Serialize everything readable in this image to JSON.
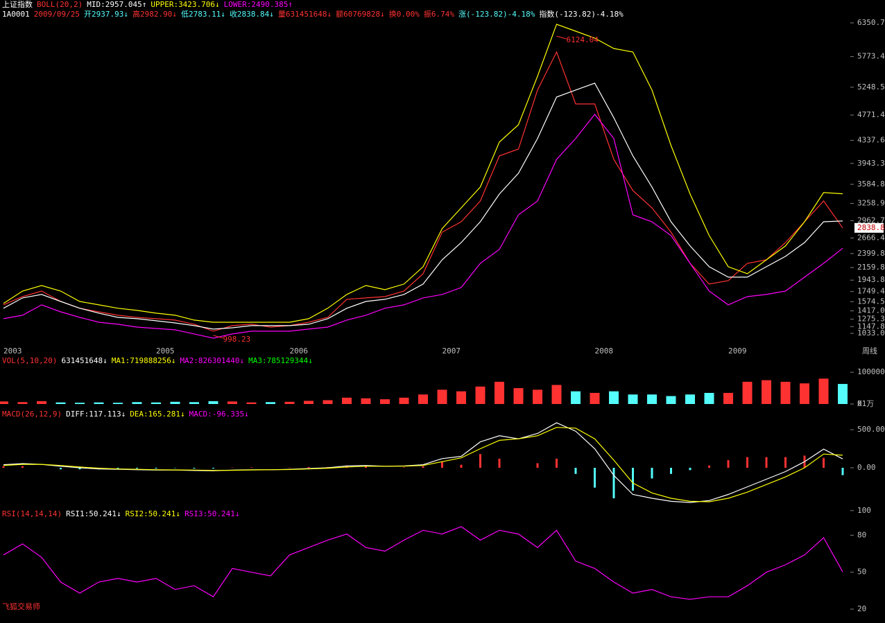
{
  "chart_data": [
    {
      "type": "line",
      "header": [
        [
          {
            "text": "上证指数",
            "color": "#ffffff"
          },
          {
            "text": "BOLL(20,2)",
            "color": "#ff3232"
          },
          {
            "text": "MID:2957.045↑",
            "color": "#ffffff"
          },
          {
            "text": "UPPER:3423.706↓",
            "color": "#ffff00"
          },
          {
            "text": "LOWER:2490.385↑",
            "color": "#ff00ff"
          }
        ],
        [
          {
            "text": "1A0001",
            "color": "#ffffff"
          },
          {
            "text": "2009/09/25",
            "color": "#ff3232"
          },
          {
            "text": "开2937.93↓",
            "color": "#54fcfc"
          },
          {
            "text": "高2982.90↓",
            "color": "#ff3232"
          },
          {
            "text": "低2783.11↓",
            "color": "#54fcfc"
          },
          {
            "text": "收2838.84↓",
            "color": "#54fcfc"
          },
          {
            "text": "量631451648↓",
            "color": "#ff3232"
          },
          {
            "text": "额60769828↓",
            "color": "#ff3232"
          },
          {
            "text": "换0.00%",
            "color": "#ff3232"
          },
          {
            "text": "振6.74%",
            "color": "#ff3232"
          },
          {
            "text": "涨(-123.82)-4.18%",
            "color": "#54fcfc"
          },
          {
            "text": "指数(-123.82)-4.18%",
            "color": "#ffffff"
          }
        ]
      ],
      "categories": [
        "2003",
        null,
        null,
        null,
        null,
        null,
        null,
        null,
        "2005",
        null,
        null,
        null,
        null,
        null,
        null,
        "2006",
        null,
        null,
        null,
        null,
        null,
        null,
        null,
        "2007",
        null,
        null,
        null,
        null,
        null,
        null,
        null,
        "2008",
        null,
        null,
        null,
        null,
        null,
        null,
        "2009",
        null,
        null,
        null,
        null,
        null,
        null
      ],
      "x_label": "周线",
      "last_label": "2838.8",
      "annotations": [
        {
          "text": "6124.04",
          "x": 29,
          "y": 6124.04
        },
        {
          "text": "998.23",
          "x": 11,
          "y": 998.23
        }
      ],
      "ylim": [
        902,
        6410
      ],
      "yticks": [
        6350.7,
        5773.4,
        5248.5,
        4771.4,
        4337.6,
        3943.3,
        3584.8,
        3258.9,
        2962.7,
        2666.4,
        2399.8,
        2159.8,
        1943.8,
        1749.4,
        1574.5,
        {
          "value": 1417,
          "label": "1417.0"
        },
        1275.3,
        1147.8,
        {
          "value": 1033,
          "label": "1033.0"
        }
      ],
      "series": [
        {
          "color": "#ff3232",
          "values": [
            1520,
            1662,
            1757,
            1579,
            1462,
            1401,
            1342,
            1306,
            1283,
            1259,
            1188,
            1069,
            1164,
            1188,
            1140,
            1164,
            1223,
            1306,
            1615,
            1639,
            1662,
            1757,
            2054,
            2766,
            2944,
            3300,
            4072,
            4190,
            5200,
            5852,
            4962,
            4962,
            4012,
            3478,
            3182,
            2766,
            2232,
            1876,
            1935,
            2232,
            2292,
            2588,
            2944,
            3300,
            2838.84
          ]
        },
        {
          "color": "#ffffff",
          "values": [
            1462,
            1639,
            1698,
            1579,
            1462,
            1378,
            1306,
            1283,
            1247,
            1211,
            1164,
            1105,
            1128,
            1164,
            1164,
            1164,
            1188,
            1283,
            1462,
            1579,
            1615,
            1698,
            1876,
            2292,
            2588,
            2944,
            3419,
            3775,
            4369,
            5081,
            5200,
            5318,
            4725,
            4072,
            3538,
            2944,
            2529,
            2173,
            1995,
            1995,
            2173,
            2351,
            2588,
            2944,
            2957.045
          ]
        },
        {
          "color": "#ffff00",
          "values": [
            1544,
            1757,
            1852,
            1757,
            1579,
            1520,
            1462,
            1425,
            1378,
            1342,
            1259,
            1223,
            1223,
            1223,
            1223,
            1223,
            1283,
            1462,
            1698,
            1852,
            1781,
            1876,
            2173,
            2826,
            3182,
            3538,
            4309,
            4606,
            5437,
            6327,
            6208,
            6090,
            5912,
            5852,
            5200,
            4250,
            3419,
            2707,
            2173,
            2054,
            2292,
            2529,
            2944,
            3443,
            3423.706
          ]
        },
        {
          "color": "#ff00ff",
          "values": [
            1283,
            1342,
            1520,
            1401,
            1306,
            1223,
            1188,
            1140,
            1116,
            1093,
            1022,
            950,
            1022,
            1069,
            1069,
            1069,
            1105,
            1140,
            1259,
            1342,
            1462,
            1520,
            1639,
            1698,
            1817,
            2232,
            2470,
            3063,
            3300,
            4012,
            4369,
            4784,
            4369,
            3063,
            2944,
            2707,
            2232,
            1757,
            1520,
            1662,
            1698,
            1757,
            1995,
            2232,
            2490.385
          ]
        }
      ]
    },
    {
      "type": "bar",
      "header": [
        [
          {
            "text": "VOL(5,10,20)",
            "color": "#ff3232"
          },
          {
            "text": "631451648↓",
            "color": "#ffffff"
          },
          {
            "text": "MA1:719888256↓",
            "color": "#ffff00"
          },
          {
            "text": "MA2:826301440↓",
            "color": "#ff00ff"
          },
          {
            "text": "MA3:785129344↓",
            "color": "#00ff00"
          }
        ]
      ],
      "y_unit": "X1万",
      "ylim": [
        0,
        120000
      ],
      "yticks": [
        0,
        100000
      ],
      "up_color": "#ff3232",
      "down_color": "#54fcfc",
      "series": [
        {
          "values": [
            8000,
            6000,
            9000,
            5000,
            4000,
            5000,
            4000,
            6000,
            5000,
            7000,
            6000,
            9000,
            8000,
            5000,
            6000,
            7000,
            10000,
            12000,
            20000,
            18000,
            15000,
            20000,
            30000,
            45000,
            40000,
            55000,
            70000,
            50000,
            45000,
            60000,
            40000,
            35000,
            40000,
            30000,
            30000,
            25000,
            30000,
            35000,
            35000,
            70000,
            75000,
            70000,
            65000,
            80000,
            63145
          ]
        }
      ]
    },
    {
      "type": "macd",
      "header": [
        [
          {
            "text": "MACD(26,12,9)",
            "color": "#ff3232"
          },
          {
            "text": "DIFF:117.113↓",
            "color": "#ffffff"
          },
          {
            "text": "DEA:165.281↓",
            "color": "#ffff00"
          },
          {
            "text": "MACD:-96.335↓",
            "color": "#ff00ff"
          }
        ]
      ],
      "ylim": [
        -545,
        682
      ],
      "yticks": [
        {
          "value": 500,
          "label": "500.00"
        },
        {
          "value": 0,
          "label": "0.00"
        }
      ],
      "series": [
        {
          "type": "bar",
          "color": "#ff3232",
          "negative_color": "#54fcfc",
          "values": [
            20,
            20,
            0,
            -20,
            -20,
            -20,
            -10,
            -10,
            -10,
            -4,
            -10,
            -10,
            4,
            6,
            0,
            4,
            10,
            10,
            30,
            20,
            0,
            6,
            20,
            80,
            40,
            180,
            120,
            0,
            60,
            120,
            -80,
            -260,
            -400,
            -300,
            -140,
            -80,
            -30,
            30,
            100,
            140,
            140,
            140,
            160,
            130,
            -96.335
          ]
        },
        {
          "type": "line",
          "color": "#ffffff",
          "values": [
            40,
            55,
            45,
            20,
            0,
            -15,
            -20,
            -25,
            -30,
            -30,
            -35,
            -40,
            -30,
            -25,
            -25,
            -20,
            -10,
            0,
            25,
            30,
            20,
            25,
            40,
            120,
            150,
            340,
            420,
            380,
            450,
            590,
            480,
            250,
            -100,
            -350,
            -400,
            -440,
            -455,
            -430,
            -350,
            -250,
            -150,
            -50,
            80,
            245,
            117.113
          ]
        },
        {
          "type": "line",
          "color": "#ffff00",
          "values": [
            30,
            45,
            45,
            30,
            10,
            -5,
            -15,
            -20,
            -25,
            -28,
            -30,
            -35,
            -32,
            -28,
            -25,
            -22,
            -15,
            -5,
            10,
            20,
            20,
            22,
            30,
            80,
            130,
            250,
            360,
            380,
            420,
            530,
            520,
            380,
            100,
            -200,
            -330,
            -400,
            -440,
            -445,
            -400,
            -320,
            -220,
            -120,
            0,
            180,
            165.281
          ]
        }
      ]
    },
    {
      "type": "line",
      "header": [
        [
          {
            "text": "RSI(14,14,14)",
            "color": "#ff3232"
          },
          {
            "text": "RSI1:50.241↓",
            "color": "#ffffff"
          },
          {
            "text": "RSI2:50.241↓",
            "color": "#ffff00"
          },
          {
            "text": "RSI3:50.241↓",
            "color": "#ff00ff"
          }
        ]
      ],
      "footer": "飞狐交易师",
      "ylim": [
        11,
        101
      ],
      "yticks": [
        100,
        80,
        50,
        20
      ],
      "series": [
        {
          "color": "#ff00ff",
          "values": [
            64,
            73,
            62,
            42,
            33,
            42,
            45,
            42,
            45,
            36,
            39,
            30,
            53,
            50,
            47,
            64,
            70,
            76,
            81,
            70,
            67,
            76,
            84,
            81,
            87,
            76,
            84,
            81,
            70,
            84,
            59,
            53,
            42,
            33,
            36,
            30,
            28,
            30,
            30,
            39,
            50,
            56,
            64,
            78,
            50.241
          ]
        }
      ]
    }
  ]
}
